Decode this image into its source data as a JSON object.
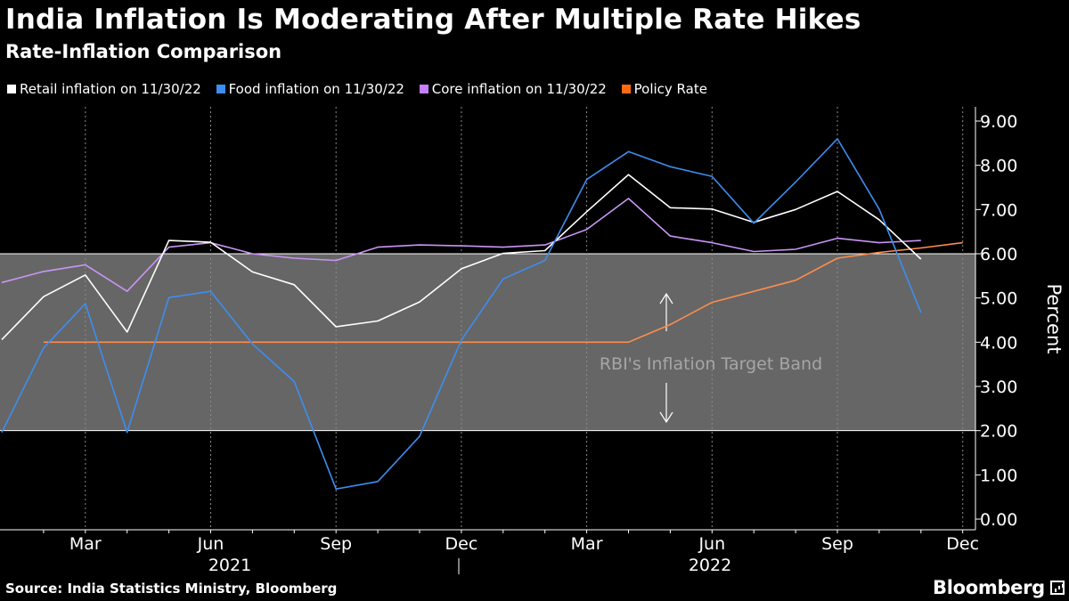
{
  "header": {
    "title": "India Inflation Is Moderating After Multiple Rate Hikes",
    "subtitle": "Rate-Inflation Comparison"
  },
  "legend": [
    {
      "label": "Retail inflation on 11/30/22",
      "color": "#ffffff"
    },
    {
      "label": "Food inflation on 11/30/22",
      "color": "#3d8ef0"
    },
    {
      "label": "Core inflation on 11/30/22",
      "color": "#c77dff"
    },
    {
      "label": "Policy Rate",
      "color": "#ff6a13"
    }
  ],
  "footer": {
    "source": "Source: India Statistics Ministry, Bloomberg",
    "brand": "Bloomberg"
  },
  "chart_data": {
    "type": "line",
    "title": "India Inflation Is Moderating After Multiple Rate Hikes",
    "subtitle": "Rate-Inflation Comparison",
    "ylabel": "Percent",
    "ylim": [
      0,
      9
    ],
    "yticks": [
      "0.00",
      "1.00",
      "2.00",
      "3.00",
      "4.00",
      "5.00",
      "6.00",
      "7.00",
      "8.00",
      "9.00"
    ],
    "x_ticks": [
      "Mar",
      "Jun",
      "Sep",
      "Dec",
      "Mar",
      "Jun",
      "Sep",
      "Dec"
    ],
    "x_years": [
      "2021",
      "2022"
    ],
    "x": [
      "2021-01",
      "2021-02",
      "2021-03",
      "2021-04",
      "2021-05",
      "2021-06",
      "2021-07",
      "2021-08",
      "2021-09",
      "2021-10",
      "2021-11",
      "2021-12",
      "2022-01",
      "2022-02",
      "2022-03",
      "2022-04",
      "2022-05",
      "2022-06",
      "2022-07",
      "2022-08",
      "2022-09",
      "2022-10",
      "2022-11",
      "2022-12"
    ],
    "band": {
      "from": 2,
      "to": 6,
      "label": "RBI's Inflation Target Band"
    },
    "grid": true,
    "legend_position": "top-left",
    "series": [
      {
        "name": "Retail inflation on 11/30/22",
        "color": "#ffffff",
        "values": [
          4.06,
          5.03,
          5.52,
          4.23,
          6.3,
          6.26,
          5.59,
          5.3,
          4.35,
          4.48,
          4.91,
          5.66,
          6.01,
          6.07,
          6.95,
          7.79,
          7.04,
          7.01,
          6.71,
          7.0,
          7.41,
          6.77,
          5.88,
          null
        ]
      },
      {
        "name": "Food inflation on 11/30/22",
        "color": "#3d8ef0",
        "values": [
          1.96,
          3.87,
          4.87,
          1.96,
          5.01,
          5.15,
          3.96,
          3.11,
          0.68,
          0.85,
          1.87,
          4.05,
          5.43,
          5.85,
          7.68,
          8.31,
          7.97,
          7.75,
          6.69,
          7.62,
          8.6,
          7.01,
          4.67,
          null
        ]
      },
      {
        "name": "Core inflation on 11/30/22",
        "color": "#c77dff",
        "values": [
          5.35,
          5.6,
          5.75,
          5.15,
          6.15,
          6.25,
          6.0,
          5.9,
          5.85,
          6.15,
          6.2,
          6.18,
          6.15,
          6.2,
          6.55,
          7.25,
          6.4,
          6.25,
          6.05,
          6.1,
          6.35,
          6.25,
          6.3,
          null
        ]
      },
      {
        "name": "Policy Rate",
        "color": "#ff6a13",
        "values": [
          null,
          4.0,
          4.0,
          4.0,
          4.0,
          4.0,
          4.0,
          4.0,
          4.0,
          4.0,
          4.0,
          4.0,
          4.0,
          4.0,
          4.0,
          4.0,
          4.4,
          4.9,
          5.15,
          5.4,
          5.9,
          6.03,
          6.13,
          6.25
        ]
      }
    ]
  }
}
